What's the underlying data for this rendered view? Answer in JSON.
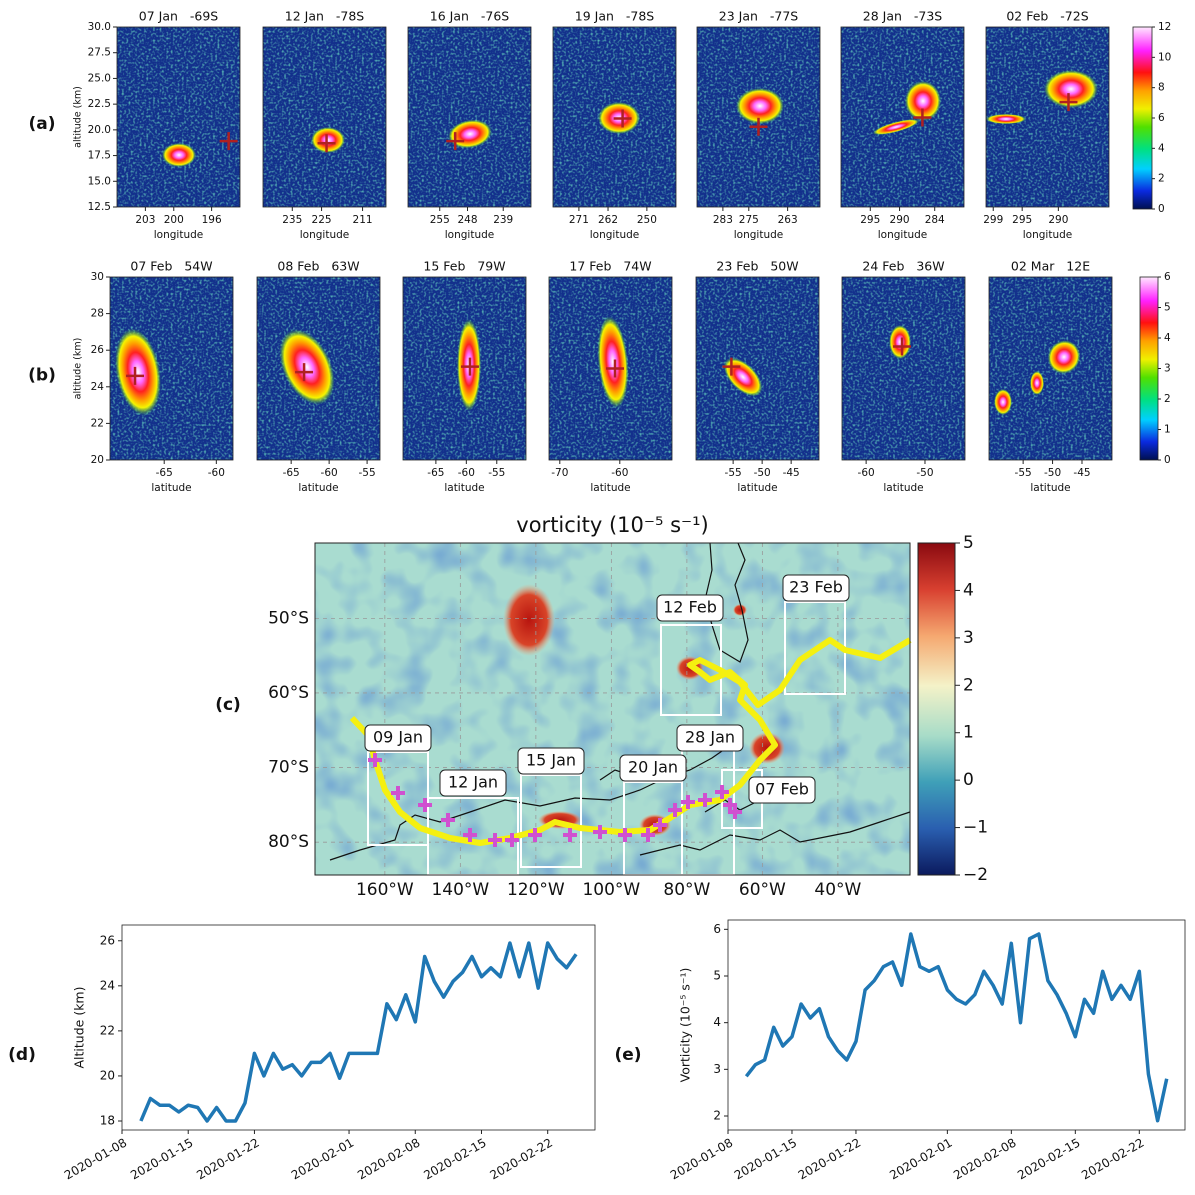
{
  "chart_data": [
    {
      "type": "heatmap",
      "panel_label": "(a)",
      "title": "07 Jan   -69S",
      "xlabel": "longitude",
      "ylabel": "altitude (km)",
      "xlim": [
        206,
        193
      ],
      "xticks": [
        203,
        200,
        196
      ],
      "ylim": [
        12.5,
        30
      ],
      "yticks": [
        12.5,
        {
          "value": 15,
          "label": "15.0"
        },
        17.5,
        {
          "value": 20,
          "label": "20.0"
        },
        22.5,
        {
          "value": 25,
          "label": "25.0"
        },
        27.5,
        {
          "value": 30,
          "label": "30.0"
        }
      ],
      "marker": {
        "x": 194.2,
        "y": 18.9
      }
    },
    {
      "type": "heatmap",
      "title": "12 Jan   -78S",
      "xlabel": "longitude",
      "xlim": [
        245,
        203
      ],
      "xticks": [
        235,
        225,
        211
      ],
      "ylim": [
        12.5,
        30
      ],
      "marker": {
        "x": 223.3,
        "y": 18.7
      }
    },
    {
      "type": "heatmap",
      "title": "16 Jan   -76S",
      "xlabel": "longitude",
      "xlim": [
        263,
        232
      ],
      "xticks": [
        255,
        248,
        239
      ],
      "ylim": [
        12.5,
        30
      ],
      "marker": {
        "x": 251.1,
        "y": 18.9
      }
    },
    {
      "type": "heatmap",
      "title": "19 Jan   -78S",
      "xlabel": "longitude",
      "xlim": [
        279,
        241
      ],
      "xticks": [
        271,
        262,
        250
      ],
      "ylim": [
        12.5,
        30
      ],
      "marker": {
        "x": 257.5,
        "y": 21.1
      }
    },
    {
      "type": "heatmap",
      "title": "23 Jan   -77S",
      "xlabel": "longitude",
      "xlim": [
        291,
        253
      ],
      "xticks": [
        283,
        275,
        263
      ],
      "ylim": [
        12.5,
        30
      ],
      "marker": {
        "x": 272,
        "y": 20.3
      }
    },
    {
      "type": "heatmap",
      "title": "28 Jan   -73S",
      "xlabel": "longitude",
      "xlim": [
        300,
        279
      ],
      "xticks": [
        295,
        290,
        284
      ],
      "ylim": [
        12.5,
        30
      ],
      "marker": {
        "x": 286.1,
        "y": 21.2
      }
    },
    {
      "type": "heatmap",
      "title": "02 Feb   -72S",
      "xlabel": "longitude",
      "xlim": [
        300,
        283
      ],
      "xticks": [
        299,
        295,
        290
      ],
      "ylim": [
        12.5,
        30
      ],
      "marker": {
        "x": 288.6,
        "y": 22.7
      }
    },
    {
      "type": "colorbar",
      "colormap": "ncar",
      "ylim": [
        0,
        12
      ],
      "yticks": [
        0,
        2,
        4,
        6,
        8,
        10,
        12
      ]
    },
    {
      "type": "heatmap",
      "panel_label": "(b)",
      "title": "07 Feb   54W",
      "xlabel": "latitude",
      "ylabel": "altitude (km)",
      "xlim": [
        -70.2,
        -58.4
      ],
      "xticks": [
        -65,
        -60
      ],
      "ylim": [
        20,
        30
      ],
      "yticks": [
        20,
        22,
        24,
        26,
        28,
        30
      ],
      "marker": {
        "x": -67.8,
        "y": 24.6
      }
    },
    {
      "type": "heatmap",
      "title": "08 Feb   63W",
      "xlabel": "latitude",
      "xlim": [
        -69.5,
        -53.3
      ],
      "xticks": [
        -65,
        -60,
        -55
      ],
      "ylim": [
        20,
        30
      ],
      "marker": {
        "x": -63.3,
        "y": 24.8
      }
    },
    {
      "type": "heatmap",
      "title": "15 Feb   79W",
      "xlabel": "latitude",
      "xlim": [
        -70.4,
        -50.2
      ],
      "xticks": [
        -65,
        -60,
        -55
      ],
      "ylim": [
        20,
        30
      ],
      "marker": {
        "x": -59.4,
        "y": 25.1
      }
    },
    {
      "type": "heatmap",
      "title": "17 Feb   74W",
      "xlabel": "latitude",
      "xlim": [
        -71.8,
        -51.3
      ],
      "xticks": [
        -70,
        -60
      ],
      "ylim": [
        20,
        30
      ],
      "marker": {
        "x": -60.8,
        "y": 25.0
      }
    },
    {
      "type": "heatmap",
      "title": "23 Feb   50W",
      "xlabel": "latitude",
      "xlim": [
        -61.4,
        -40.2
      ],
      "xticks": [
        -55,
        -50,
        -45
      ],
      "ylim": [
        20,
        30
      ],
      "marker": {
        "x": -55.3,
        "y": 25.1
      }
    },
    {
      "type": "heatmap",
      "title": "24 Feb   36W",
      "xlabel": "latitude",
      "xlim": [
        -64.1,
        -43.2
      ],
      "xticks": [
        -60,
        -50
      ],
      "ylim": [
        20,
        30
      ],
      "marker": {
        "x": -53.9,
        "y": 26.2
      }
    },
    {
      "type": "heatmap",
      "title": "02 Mar   12E",
      "xlabel": "latitude",
      "xlim": [
        -60.8,
        -39.9
      ],
      "xticks": [
        -55,
        -50,
        -45
      ],
      "ylim": [
        20,
        30
      ]
    },
    {
      "type": "colorbar",
      "colormap": "ncar",
      "ylim": [
        0,
        6
      ],
      "yticks": [
        0,
        1,
        2,
        3,
        4,
        5,
        6
      ]
    },
    {
      "type": "map",
      "panel_label": "(c)",
      "title": "vorticity (10⁻⁵ s⁻¹)",
      "xlim": [
        -178.5,
        -20.9
      ],
      "xticks": [
        {
          "value": -160,
          "label": "160°W"
        },
        {
          "value": -140,
          "label": "140°W"
        },
        {
          "value": -120,
          "label": "120°W"
        },
        {
          "value": -100,
          "label": "100°W"
        },
        {
          "value": -80,
          "label": "80°W"
        },
        {
          "value": -60,
          "label": "60°W"
        },
        {
          "value": -40,
          "label": "40°W"
        }
      ],
      "ylim": [
        -84.4,
        -39.9
      ],
      "yticks": [
        {
          "value": -50,
          "label": "50°S"
        },
        {
          "value": -60,
          "label": "60°S"
        },
        {
          "value": -70,
          "label": "70°S"
        },
        {
          "value": -80,
          "label": "80°S"
        }
      ],
      "clim": [
        -2,
        5
      ],
      "cticks": [
        {
          "value": -2,
          "label": "−2"
        },
        {
          "value": -1,
          "label": "−1"
        },
        0,
        1,
        2,
        3,
        4,
        5
      ],
      "annotations": [
        "09 Jan",
        "12 Jan",
        "15 Jan",
        "20 Jan",
        "28 Jan",
        "07 Feb",
        "12 Feb",
        "23 Feb"
      ]
    },
    {
      "type": "line",
      "panel_label": "(d)",
      "ylabel": "Altitude (km)",
      "color": "#1f77b4",
      "x": [
        "2020-01-10",
        "2020-01-11",
        "2020-01-12",
        "2020-01-13",
        "2020-01-14",
        "2020-01-15",
        "2020-01-16",
        "2020-01-17",
        "2020-01-18",
        "2020-01-19",
        "2020-01-20",
        "2020-01-21",
        "2020-01-22",
        "2020-01-23",
        "2020-01-24",
        "2020-01-25",
        "2020-01-26",
        "2020-01-27",
        "2020-01-28",
        "2020-01-29",
        "2020-01-30",
        "2020-01-31",
        "2020-02-01",
        "2020-02-02",
        "2020-02-03",
        "2020-02-04",
        "2020-02-05",
        "2020-02-06",
        "2020-02-07",
        "2020-02-08",
        "2020-02-09",
        "2020-02-10",
        "2020-02-11",
        "2020-02-12",
        "2020-02-13",
        "2020-02-14",
        "2020-02-15",
        "2020-02-16",
        "2020-02-17",
        "2020-02-18",
        "2020-02-19",
        "2020-02-20",
        "2020-02-21",
        "2020-02-22",
        "2020-02-23",
        "2020-02-24",
        "2020-02-25"
      ],
      "values": [
        18.0,
        19.0,
        18.7,
        18.7,
        18.4,
        18.7,
        18.6,
        18.0,
        18.6,
        18.0,
        18.0,
        18.8,
        21.0,
        20.0,
        21.0,
        20.3,
        20.5,
        20.0,
        20.6,
        20.6,
        21.0,
        19.9,
        21.0,
        21.0,
        21.0,
        21.0,
        23.2,
        22.5,
        23.6,
        22.4,
        25.3,
        24.2,
        23.5,
        24.2,
        24.6,
        25.3,
        24.4,
        24.8,
        24.4,
        25.9,
        24.4,
        25.9,
        23.9,
        25.9,
        25.2,
        24.8,
        25.4
      ],
      "xlim": [
        "2020-01-08",
        "2020-02-27"
      ],
      "xticks": [
        "2020-01-08",
        "2020-01-15",
        "2020-01-22",
        "2020-02-01",
        "2020-02-08",
        "2020-02-15",
        "2020-02-22"
      ],
      "ylim": [
        17.6,
        26.7
      ],
      "yticks": [
        18,
        20,
        22,
        24,
        26
      ]
    },
    {
      "type": "line",
      "panel_label": "(e)",
      "ylabel": "Vorticity (10⁻⁵ s⁻¹)",
      "color": "#1f77b4",
      "x": [
        "2020-01-10",
        "2020-01-11",
        "2020-01-12",
        "2020-01-13",
        "2020-01-14",
        "2020-01-15",
        "2020-01-16",
        "2020-01-17",
        "2020-01-18",
        "2020-01-19",
        "2020-01-20",
        "2020-01-21",
        "2020-01-22",
        "2020-01-23",
        "2020-01-24",
        "2020-01-25",
        "2020-01-26",
        "2020-01-27",
        "2020-01-28",
        "2020-01-29",
        "2020-01-30",
        "2020-01-31",
        "2020-02-01",
        "2020-02-02",
        "2020-02-03",
        "2020-02-04",
        "2020-02-05",
        "2020-02-06",
        "2020-02-07",
        "2020-02-08",
        "2020-02-09",
        "2020-02-10",
        "2020-02-11",
        "2020-02-12",
        "2020-02-13",
        "2020-02-14",
        "2020-02-15",
        "2020-02-16",
        "2020-02-17",
        "2020-02-18",
        "2020-02-19",
        "2020-02-20",
        "2020-02-21",
        "2020-02-22",
        "2020-02-23",
        "2020-02-24",
        "2020-02-25"
      ],
      "values": [
        2.85,
        3.1,
        3.2,
        3.9,
        3.5,
        3.7,
        4.4,
        4.1,
        4.3,
        3.7,
        3.4,
        3.2,
        3.6,
        4.7,
        4.9,
        5.2,
        5.3,
        4.8,
        5.9,
        5.2,
        5.1,
        5.2,
        4.7,
        4.5,
        4.4,
        4.6,
        5.1,
        4.8,
        4.4,
        5.7,
        4.0,
        5.8,
        5.9,
        4.9,
        4.6,
        4.2,
        3.7,
        4.5,
        4.2,
        5.1,
        4.5,
        4.8,
        4.5,
        5.1,
        2.9,
        1.9,
        2.8
      ],
      "xlim": [
        "2020-01-08",
        "2020-02-27"
      ],
      "xticks": [
        "2020-01-08",
        "2020-01-15",
        "2020-01-22",
        "2020-02-01",
        "2020-02-08",
        "2020-02-15",
        "2020-02-22"
      ],
      "ylim": [
        1.7,
        6.2
      ],
      "yticks": [
        2,
        3,
        4,
        5,
        6
      ]
    }
  ]
}
